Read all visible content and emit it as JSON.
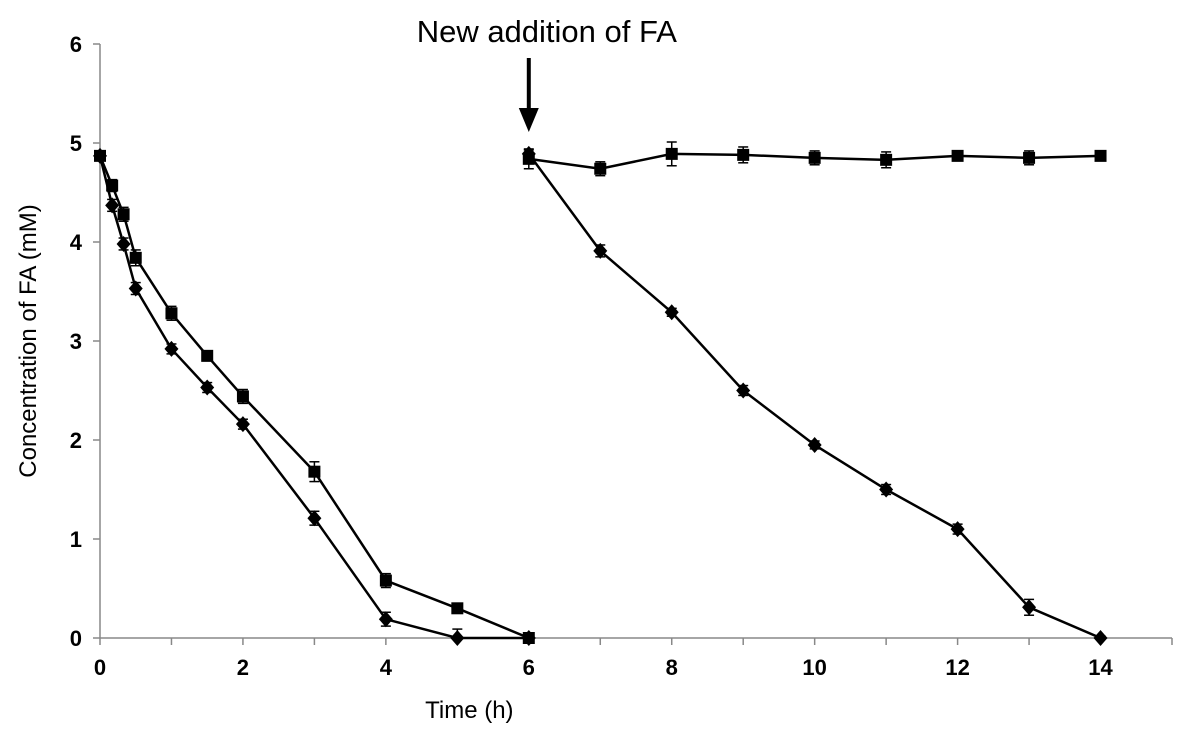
{
  "chart_data": {
    "type": "line",
    "title": "",
    "xlabel": "Time (h)",
    "ylabel": "Concentration of FA (mM)",
    "xlim": [
      0,
      15
    ],
    "ylim": [
      0,
      6
    ],
    "xticks": [
      0,
      2,
      4,
      6,
      8,
      10,
      12,
      14
    ],
    "yticks": [
      0,
      1,
      2,
      3,
      4,
      5,
      6
    ],
    "grid": false,
    "legend": "none",
    "annotation": {
      "text": "New addition of FA",
      "x": 6,
      "arrow": "down"
    },
    "series": [
      {
        "marker": "square",
        "color": "#000000",
        "segments": [
          [
            {
              "x": 0,
              "y": 4.87,
              "err": 0.04
            },
            {
              "x": 0.17,
              "y": 4.57,
              "err": 0.06
            },
            {
              "x": 0.33,
              "y": 4.28,
              "err": 0.07
            },
            {
              "x": 0.5,
              "y": 3.84,
              "err": 0.08
            },
            {
              "x": 1,
              "y": 3.28,
              "err": 0.07
            },
            {
              "x": 1.5,
              "y": 2.85,
              "err": 0.05
            },
            {
              "x": 2,
              "y": 2.44,
              "err": 0.07
            },
            {
              "x": 3,
              "y": 1.68,
              "err": 0.1
            },
            {
              "x": 4,
              "y": 0.58,
              "err": 0.07
            },
            {
              "x": 5,
              "y": 0.3,
              "err": 0.03
            },
            {
              "x": 6,
              "y": 0.0,
              "err": 0.02
            }
          ],
          [
            {
              "x": 6,
              "y": 4.84,
              "err": 0.1
            },
            {
              "x": 7,
              "y": 4.74,
              "err": 0.07
            },
            {
              "x": 8,
              "y": 4.89,
              "err": 0.12
            },
            {
              "x": 9,
              "y": 4.88,
              "err": 0.08
            },
            {
              "x": 10,
              "y": 4.85,
              "err": 0.07
            },
            {
              "x": 11,
              "y": 4.83,
              "err": 0.08
            },
            {
              "x": 12,
              "y": 4.87,
              "err": 0.04
            },
            {
              "x": 13,
              "y": 4.85,
              "err": 0.07
            },
            {
              "x": 14,
              "y": 4.87,
              "err": 0.04
            }
          ]
        ]
      },
      {
        "marker": "diamond",
        "color": "#000000",
        "segments": [
          [
            {
              "x": 0,
              "y": 4.87,
              "err": 0.04
            },
            {
              "x": 0.17,
              "y": 4.37,
              "err": 0.06
            },
            {
              "x": 0.33,
              "y": 3.98,
              "err": 0.06
            },
            {
              "x": 0.5,
              "y": 3.53,
              "err": 0.06
            },
            {
              "x": 1,
              "y": 2.92,
              "err": 0.05
            },
            {
              "x": 1.5,
              "y": 2.53,
              "err": 0.05
            },
            {
              "x": 2,
              "y": 2.16,
              "err": 0.05
            },
            {
              "x": 3,
              "y": 1.21,
              "err": 0.07
            },
            {
              "x": 4,
              "y": 0.19,
              "err": 0.07
            },
            {
              "x": 5,
              "y": 0.0,
              "err": 0.09
            },
            {
              "x": 6,
              "y": 0.0,
              "err": 0.02
            }
          ],
          [
            {
              "x": 6,
              "y": 4.89,
              "err": 0.04
            },
            {
              "x": 7,
              "y": 3.91,
              "err": 0.06
            },
            {
              "x": 8,
              "y": 3.29,
              "err": 0.04
            },
            {
              "x": 9,
              "y": 2.5,
              "err": 0.05
            },
            {
              "x": 10,
              "y": 1.95,
              "err": 0.04
            },
            {
              "x": 11,
              "y": 1.5,
              "err": 0.05
            },
            {
              "x": 12,
              "y": 1.1,
              "err": 0.05
            },
            {
              "x": 13,
              "y": 0.31,
              "err": 0.08
            },
            {
              "x": 14,
              "y": 0.0,
              "err": 0.02
            }
          ]
        ]
      }
    ]
  }
}
